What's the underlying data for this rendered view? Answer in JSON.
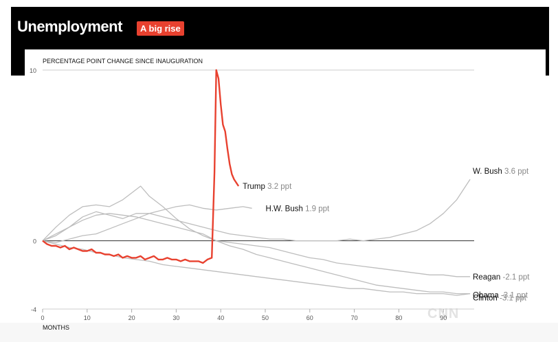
{
  "header": {
    "title": "Unemployment",
    "badge": "A big rise"
  },
  "watermark": "CNN",
  "colors": {
    "highlight": "#e8412f",
    "other": "#bdbdbd",
    "zero_line": "#444444",
    "header_bg": "#000000"
  },
  "chart_data": {
    "type": "line",
    "ylabel": "PERCENTAGE POINT CHANGE SINCE INAUGURATION",
    "xlabel": "MONTHS",
    "xlim": [
      0,
      96
    ],
    "ylim": [
      -4,
      10
    ],
    "x_ticks": [
      0,
      10,
      20,
      30,
      40,
      50,
      60,
      70,
      80,
      90
    ],
    "y_ticks": [
      10,
      0,
      -4
    ],
    "grid": false,
    "series": [
      {
        "name": "Trump",
        "value_label": "3.2 ppt",
        "highlight": true,
        "x": [
          0,
          1,
          2,
          3,
          4,
          5,
          6,
          7,
          8,
          9,
          10,
          11,
          12,
          13,
          14,
          15,
          16,
          17,
          18,
          19,
          20,
          21,
          22,
          23,
          24,
          25,
          26,
          27,
          28,
          29,
          30,
          31,
          32,
          33,
          34,
          35,
          36,
          37,
          38,
          38.6,
          39,
          39.5,
          40,
          40.5,
          41,
          41.5,
          42,
          42.5,
          43,
          43.5,
          44
        ],
        "y": [
          0,
          -0.2,
          -0.3,
          -0.3,
          -0.4,
          -0.3,
          -0.5,
          -0.4,
          -0.5,
          -0.6,
          -0.6,
          -0.5,
          -0.7,
          -0.7,
          -0.8,
          -0.8,
          -0.9,
          -0.8,
          -1.0,
          -0.9,
          -1.0,
          -1.0,
          -0.9,
          -1.1,
          -1.0,
          -0.9,
          -1.1,
          -1.1,
          -1.0,
          -1.1,
          -1.1,
          -1.2,
          -1.1,
          -1.2,
          -1.2,
          -1.2,
          -1.3,
          -1.1,
          -1.0,
          4.0,
          10.0,
          9.5,
          8.0,
          6.8,
          6.4,
          5.4,
          4.5,
          3.9,
          3.6,
          3.4,
          3.2
        ]
      },
      {
        "name": "W. Bush",
        "value_label": "3.6 ppt",
        "highlight": false,
        "x": [
          0,
          3,
          6,
          9,
          12,
          15,
          18,
          21,
          24,
          27,
          30,
          33,
          36,
          39,
          42,
          45,
          48,
          51,
          54,
          57,
          60,
          63,
          66,
          69,
          72,
          75,
          78,
          81,
          84,
          87,
          90,
          93,
          96
        ],
        "y": [
          0,
          0.3,
          0.8,
          1.4,
          1.7,
          1.5,
          1.3,
          1.6,
          1.6,
          1.4,
          1.2,
          1.0,
          0.8,
          0.6,
          0.4,
          0.3,
          0.2,
          0.1,
          0.1,
          0.0,
          0.0,
          0.0,
          0.0,
          0.1,
          0.0,
          0.1,
          0.2,
          0.4,
          0.6,
          1.0,
          1.6,
          2.4,
          3.6
        ]
      },
      {
        "name": "H.W. Bush",
        "value_label": "1.9 ppt",
        "highlight": false,
        "x": [
          0,
          3,
          6,
          9,
          12,
          15,
          18,
          21,
          24,
          27,
          30,
          33,
          36,
          39,
          42,
          45,
          47
        ],
        "y": [
          0,
          -0.1,
          0.1,
          0.3,
          0.4,
          0.7,
          1.0,
          1.3,
          1.6,
          1.8,
          2.0,
          2.1,
          1.9,
          1.8,
          1.9,
          2.0,
          1.9
        ]
      },
      {
        "name": "Reagan",
        "value_label": "-2.1 ppt",
        "highlight": false,
        "x": [
          0,
          3,
          6,
          9,
          12,
          15,
          18,
          21,
          22,
          24,
          27,
          30,
          33,
          36,
          39,
          42,
          45,
          48,
          51,
          54,
          57,
          60,
          63,
          66,
          69,
          72,
          75,
          78,
          81,
          84,
          87,
          90,
          93,
          96
        ],
        "y": [
          0,
          0.8,
          1.5,
          2.0,
          2.1,
          2.0,
          2.4,
          3.0,
          3.2,
          2.6,
          2.0,
          1.3,
          0.7,
          0.3,
          0.0,
          -0.1,
          -0.2,
          -0.3,
          -0.4,
          -0.6,
          -0.8,
          -1.0,
          -1.1,
          -1.3,
          -1.4,
          -1.5,
          -1.6,
          -1.7,
          -1.8,
          -1.9,
          -2.0,
          -2.0,
          -2.1,
          -2.1
        ]
      },
      {
        "name": "Obama",
        "value_label": "-3.1 ppt",
        "highlight": false,
        "x": [
          0,
          3,
          6,
          9,
          12,
          15,
          18,
          21,
          24,
          27,
          30,
          33,
          36,
          39,
          42,
          45,
          48,
          51,
          54,
          57,
          60,
          63,
          66,
          69,
          72,
          75,
          78,
          81,
          84,
          87,
          90,
          93,
          96
        ],
        "y": [
          0,
          0.4,
          0.8,
          1.2,
          1.5,
          1.6,
          1.5,
          1.4,
          1.2,
          1.0,
          0.8,
          0.6,
          0.4,
          0.0,
          -0.3,
          -0.5,
          -0.8,
          -1.0,
          -1.2,
          -1.4,
          -1.6,
          -1.8,
          -2.0,
          -2.2,
          -2.4,
          -2.6,
          -2.7,
          -2.8,
          -2.9,
          -3.0,
          -3.0,
          -3.1,
          -3.1
        ]
      },
      {
        "name": "Clinton",
        "value_label": "-3.1 ppt",
        "highlight": false,
        "x": [
          0,
          3,
          6,
          9,
          12,
          15,
          18,
          21,
          24,
          27,
          30,
          33,
          36,
          39,
          42,
          45,
          48,
          51,
          54,
          57,
          60,
          63,
          66,
          69,
          72,
          75,
          78,
          81,
          84,
          87,
          90,
          93,
          96
        ],
        "y": [
          0,
          -0.2,
          -0.4,
          -0.5,
          -0.7,
          -0.8,
          -1.0,
          -1.1,
          -1.2,
          -1.4,
          -1.5,
          -1.6,
          -1.7,
          -1.8,
          -1.9,
          -2.0,
          -2.1,
          -2.2,
          -2.3,
          -2.4,
          -2.5,
          -2.6,
          -2.7,
          -2.8,
          -2.8,
          -2.9,
          -3.0,
          -3.0,
          -3.1,
          -3.1,
          -3.1,
          -3.2,
          -3.1
        ]
      }
    ]
  }
}
